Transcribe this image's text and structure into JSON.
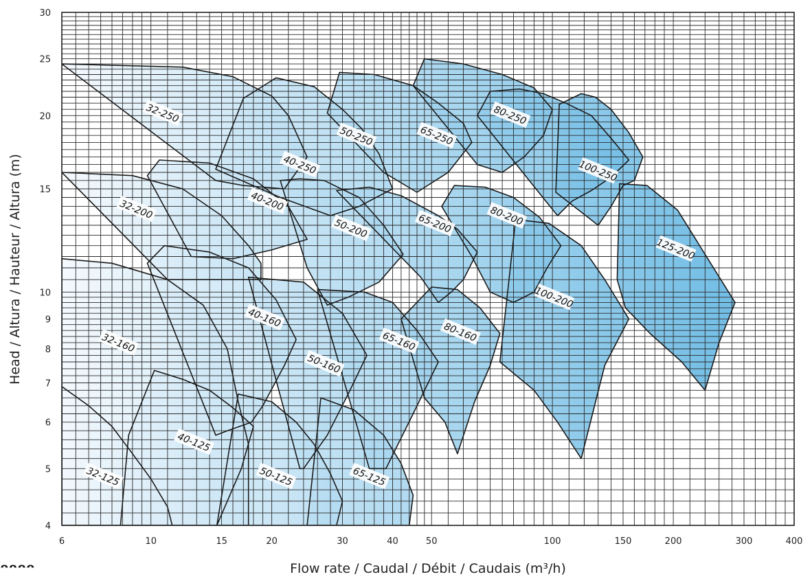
{
  "chart_data": {
    "type": "area",
    "xlabel": "Flow rate / Caudal / Débit / Caudais (m³/h)",
    "ylabel": "Head / Altura / Hauteur / Altura (m)",
    "x_scale": "log",
    "y_scale": "log",
    "xlim": [
      6,
      400
    ],
    "ylim": [
      4,
      30
    ],
    "x_ticks": [
      6,
      10,
      15,
      20,
      30,
      40,
      50,
      100,
      150,
      200,
      300,
      400
    ],
    "y_ticks": [
      4,
      5,
      6,
      7,
      8,
      9,
      10,
      15,
      20,
      25,
      30
    ],
    "grid": true,
    "legend": "none",
    "color_gradient": [
      "#f2f8fd",
      "#56b0e0"
    ],
    "outline_color": "#1a1a1a",
    "regions": [
      {
        "name": "32-125",
        "label_at": [
          7.6,
          4.85
        ],
        "polygon": [
          [
            6,
            4
          ],
          [
            6,
            6.9
          ],
          [
            7,
            6.4
          ],
          [
            8,
            5.9
          ],
          [
            9,
            5.3
          ],
          [
            10,
            4.8
          ],
          [
            11,
            4.3
          ],
          [
            11.3,
            4.0
          ]
        ]
      },
      {
        "name": "40-125",
        "label_at": [
          12.8,
          5.55
        ],
        "polygon": [
          [
            8.4,
            4
          ],
          [
            8.8,
            5.7
          ],
          [
            10.2,
            7.35
          ],
          [
            12,
            7.1
          ],
          [
            14,
            6.8
          ],
          [
            16,
            6.35
          ],
          [
            18,
            5.9
          ],
          [
            16.8,
            5.0
          ],
          [
            14.6,
            4.0
          ]
        ]
      },
      {
        "name": "50-125",
        "label_at": [
          20.5,
          4.85
        ],
        "polygon": [
          [
            14.6,
            4
          ],
          [
            16.5,
            6.7
          ],
          [
            20,
            6.5
          ],
          [
            23,
            6.0
          ],
          [
            25.5,
            5.5
          ],
          [
            28,
            4.9
          ],
          [
            30,
            4.4
          ],
          [
            29,
            4.0
          ]
        ]
      },
      {
        "name": "65-125",
        "label_at": [
          35,
          4.85
        ],
        "polygon": [
          [
            24.5,
            4
          ],
          [
            26.5,
            6.6
          ],
          [
            32,
            6.3
          ],
          [
            38,
            5.7
          ],
          [
            42,
            5.1
          ],
          [
            45,
            4.5
          ],
          [
            44,
            4.0
          ]
        ]
      },
      {
        "name": "32-160",
        "label_at": [
          8.3,
          8.2
        ],
        "polygon": [
          [
            6,
            4
          ],
          [
            6,
            11.4
          ],
          [
            8,
            11.2
          ],
          [
            11,
            10.5
          ],
          [
            13.5,
            9.5
          ],
          [
            15.5,
            8.0
          ],
          [
            16.5,
            6.5
          ],
          [
            17.5,
            5.5
          ],
          [
            17.5,
            4
          ]
        ]
      },
      {
        "name": "40-160",
        "label_at": [
          19.2,
          9.05
        ],
        "polygon": [
          [
            9.8,
            11.2
          ],
          [
            10.8,
            12.0
          ],
          [
            14,
            11.7
          ],
          [
            17.5,
            11.0
          ],
          [
            20.5,
            9.7
          ],
          [
            23,
            8.3
          ],
          [
            21.5,
            7.5
          ],
          [
            19,
            6.4
          ],
          [
            17.8,
            6.0
          ],
          [
            15.5,
            5.8
          ],
          [
            14.5,
            5.7
          ]
        ]
      },
      {
        "name": "50-160",
        "label_at": [
          27,
          7.55
        ],
        "polygon": [
          [
            17.5,
            10.6
          ],
          [
            24,
            10.4
          ],
          [
            30,
            9.2
          ],
          [
            34.5,
            7.8
          ],
          [
            31,
            6.7
          ],
          [
            27.5,
            5.7
          ],
          [
            24,
            5.0
          ],
          [
            23.5,
            5.0
          ]
        ]
      },
      {
        "name": "65-160",
        "label_at": [
          41.5,
          8.25
        ],
        "polygon": [
          [
            26,
            10.1
          ],
          [
            34,
            10.0
          ],
          [
            40,
            9.6
          ],
          [
            46,
            8.6
          ],
          [
            52,
            7.6
          ],
          [
            45,
            6.2
          ],
          [
            38.5,
            5.0
          ],
          [
            35,
            5.0
          ]
        ]
      },
      {
        "name": "80-160",
        "label_at": [
          59,
          8.55
        ],
        "polygon": [
          [
            42,
            9.0
          ],
          [
            50,
            10.2
          ],
          [
            58,
            10.1
          ],
          [
            66,
            9.4
          ],
          [
            74,
            8.5
          ],
          [
            70,
            7.5
          ],
          [
            64,
            6.5
          ],
          [
            58,
            5.3
          ],
          [
            54,
            6.0
          ],
          [
            48,
            6.6
          ]
        ]
      },
      {
        "name": "100-200",
        "label_at": [
          101,
          9.8
        ],
        "polygon": [
          [
            74,
            7.6
          ],
          [
            81,
            13.3
          ],
          [
            98,
            13.1
          ],
          [
            118,
            12.0
          ],
          [
            135,
            10.5
          ],
          [
            155,
            9.0
          ],
          [
            135,
            7.5
          ],
          [
            118,
            5.2
          ],
          [
            103,
            6.0
          ],
          [
            90,
            6.8
          ]
        ]
      },
      {
        "name": "125-200",
        "label_at": [
          203,
          11.85
        ],
        "polygon": [
          [
            147,
            15.3
          ],
          [
            172,
            15.2
          ],
          [
            205,
            13.8
          ],
          [
            240,
            11.6
          ],
          [
            285,
            9.6
          ],
          [
            260,
            8.2
          ],
          [
            240,
            6.8
          ],
          [
            210,
            7.6
          ],
          [
            175,
            8.5
          ],
          [
            152,
            9.4
          ],
          [
            145,
            10.5
          ]
        ]
      },
      {
        "name": "32-200",
        "label_at": [
          9.2,
          13.85
        ],
        "polygon": [
          [
            6,
            16
          ],
          [
            9,
            15.8
          ],
          [
            12,
            15.0
          ],
          [
            15,
            13.5
          ],
          [
            17.5,
            12.0
          ],
          [
            18.8,
            11.2
          ],
          [
            18.8,
            10.5
          ],
          [
            11,
            10.5
          ]
        ]
      },
      {
        "name": "40-200",
        "label_at": [
          19.5,
          14.3
        ],
        "polygon": [
          [
            9.8,
            15.8
          ],
          [
            10.5,
            16.8
          ],
          [
            14,
            16.6
          ],
          [
            18,
            15.6
          ],
          [
            22,
            14.0
          ],
          [
            24.5,
            12.3
          ],
          [
            20,
            11.8
          ],
          [
            16,
            11.4
          ],
          [
            12.6,
            11.5
          ]
        ]
      },
      {
        "name": "50-200",
        "label_at": [
          31.5,
          12.85
        ],
        "polygon": [
          [
            21,
            15.5
          ],
          [
            23.5,
            15.6
          ],
          [
            27,
            15.5
          ],
          [
            33,
            14.5
          ],
          [
            38,
            13.0
          ],
          [
            42.5,
            11.6
          ],
          [
            37,
            10.4
          ],
          [
            31,
            9.8
          ],
          [
            27.5,
            9.5
          ],
          [
            24.5,
            11.0
          ]
        ]
      },
      {
        "name": "65-200",
        "label_at": [
          51,
          13.1
        ],
        "polygon": [
          [
            29,
            14.9
          ],
          [
            35,
            15.1
          ],
          [
            42,
            14.6
          ],
          [
            52,
            13.5
          ],
          [
            58,
            12.8
          ],
          [
            65,
            11.7
          ],
          [
            60,
            10.5
          ],
          [
            56,
            10.0
          ],
          [
            52,
            9.6
          ],
          [
            47,
            10.6
          ]
        ]
      },
      {
        "name": "80-200",
        "label_at": [
          77,
          13.5
        ],
        "polygon": [
          [
            53,
            14.0
          ],
          [
            57,
            15.2
          ],
          [
            68,
            15.1
          ],
          [
            80,
            14.5
          ],
          [
            93,
            13.4
          ],
          [
            105,
            12.0
          ],
          [
            97,
            11.0
          ],
          [
            90,
            10.0
          ],
          [
            80,
            9.6
          ],
          [
            70,
            10.0
          ],
          [
            63,
            11.5
          ]
        ]
      },
      {
        "name": "32-250",
        "label_at": [
          10.7,
          20.2
        ],
        "polygon": [
          [
            6,
            24.5
          ],
          [
            12,
            24.2
          ],
          [
            16,
            23.3
          ],
          [
            20,
            21.6
          ],
          [
            22,
            20.0
          ],
          [
            24.5,
            17.0
          ],
          [
            21.5,
            15.0
          ],
          [
            17,
            15.2
          ],
          [
            14.5,
            15.5
          ]
        ]
      },
      {
        "name": "40-250",
        "label_at": [
          23.5,
          16.5
        ],
        "polygon": [
          [
            14.5,
            16.2
          ],
          [
            17,
            21.4
          ],
          [
            20.5,
            23.2
          ],
          [
            25.5,
            22.4
          ],
          [
            30,
            20.5
          ],
          [
            33.5,
            19.0
          ],
          [
            37,
            17.2
          ],
          [
            40,
            15.0
          ],
          [
            33,
            14.0
          ],
          [
            28,
            13.5
          ],
          [
            21,
            14.5
          ]
        ]
      },
      {
        "name": "50-250",
        "label_at": [
          32.5,
          18.45
        ],
        "polygon": [
          [
            27.5,
            20.2
          ],
          [
            29.5,
            23.7
          ],
          [
            36,
            23.5
          ],
          [
            45,
            22.5
          ],
          [
            52,
            21.0
          ],
          [
            60,
            19.4
          ],
          [
            63,
            18.0
          ],
          [
            55,
            16.0
          ],
          [
            46,
            14.8
          ],
          [
            38,
            16.0
          ]
        ]
      },
      {
        "name": "65-250",
        "label_at": [
          51.5,
          18.5
        ],
        "polygon": [
          [
            45,
            22.5
          ],
          [
            48,
            25.0
          ],
          [
            60,
            24.5
          ],
          [
            75,
            23.5
          ],
          [
            90,
            22.3
          ],
          [
            100,
            20.5
          ],
          [
            95,
            18.5
          ],
          [
            85,
            17.0
          ],
          [
            75,
            16.0
          ],
          [
            65,
            16.5
          ],
          [
            55,
            19.0
          ]
        ]
      },
      {
        "name": "80-250",
        "label_at": [
          78.5,
          20.05
        ],
        "polygon": [
          [
            65,
            20.0
          ],
          [
            70,
            22.0
          ],
          [
            83,
            22.2
          ],
          [
            95,
            21.8
          ],
          [
            108,
            21.0
          ],
          [
            125,
            20.0
          ],
          [
            140,
            18.3
          ],
          [
            155,
            16.8
          ],
          [
            140,
            15.7
          ],
          [
            125,
            14.9
          ],
          [
            112,
            14.3
          ],
          [
            103,
            13.5
          ],
          [
            97,
            14.2
          ]
        ]
      },
      {
        "name": "100-250",
        "label_at": [
          130,
          16.1
        ],
        "polygon": [
          [
            102,
            14.8
          ],
          [
            104,
            20.9
          ],
          [
            118,
            21.8
          ],
          [
            128,
            21.5
          ],
          [
            140,
            20.5
          ],
          [
            155,
            18.7
          ],
          [
            168,
            17.0
          ],
          [
            160,
            15.5
          ],
          [
            150,
            15.2
          ],
          [
            140,
            14.0
          ],
          [
            130,
            13.0
          ]
        ]
      }
    ]
  }
}
